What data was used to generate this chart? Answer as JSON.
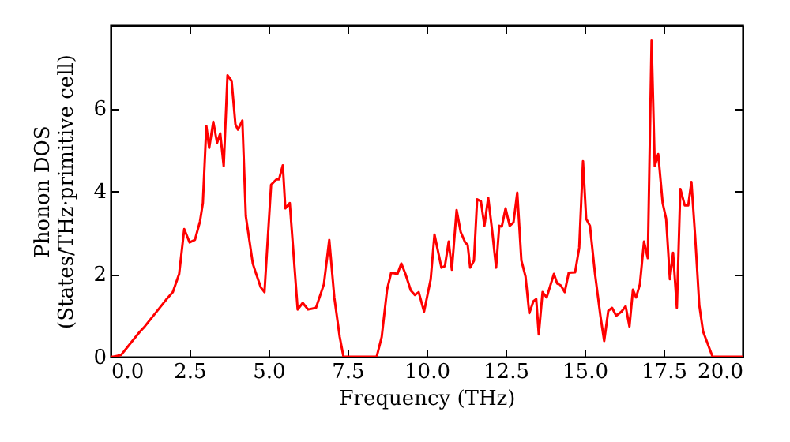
{
  "chart_data": {
    "type": "line",
    "xlabel": "Frequency (THz)",
    "ylabel": "Phonon DOS\n(States/THz·primitive cell)",
    "xlim": [
      0,
      20
    ],
    "ylim": [
      0,
      8
    ],
    "xticks": [
      {
        "value": 0,
        "label": "0.0"
      },
      {
        "value": 2.5,
        "label": "2.5"
      },
      {
        "value": 5,
        "label": "5.0"
      },
      {
        "value": 7.5,
        "label": "7.5"
      },
      {
        "value": 10,
        "label": "10.0"
      },
      {
        "value": 12.5,
        "label": "12.5"
      },
      {
        "value": 15,
        "label": "15.0"
      },
      {
        "value": 17.5,
        "label": "17.5"
      },
      {
        "value": 20,
        "label": "20.0"
      }
    ],
    "yticks": [
      0,
      2,
      4,
      6
    ],
    "grid": false,
    "marker": "none",
    "line_style": "solid",
    "x": [
      0,
      0.08,
      0.33,
      0.92,
      1.08,
      1.75,
      1.97,
      2.17,
      2.33,
      2.5,
      2.67,
      2.83,
      2.92,
      3.03,
      3.12,
      3.25,
      3.37,
      3.47,
      3.58,
      3.7,
      3.83,
      3.95,
      4.03,
      4.17,
      4.28,
      4.5,
      4.58,
      4.75,
      4.87,
      5.08,
      5.25,
      5.33,
      5.45,
      5.53,
      5.67,
      5.92,
      6.08,
      6.25,
      6.5,
      6.75,
      6.92,
      7.08,
      7.25,
      7.37,
      8.42,
      8.58,
      8.75,
      8.88,
      9.08,
      9.2,
      9.33,
      9.5,
      9.63,
      9.75,
      9.92,
      10.13,
      10.25,
      10.47,
      10.58,
      10.7,
      10.8,
      10.95,
      11.08,
      11.22,
      11.3,
      11.38,
      11.5,
      11.6,
      11.72,
      11.83,
      11.95,
      12.08,
      12.2,
      12.3,
      12.38,
      12.5,
      12.63,
      12.75,
      12.87,
      13,
      13.13,
      13.25,
      13.38,
      13.47,
      13.55,
      13.67,
      13.8,
      14.03,
      14.13,
      14.25,
      14.37,
      14.5,
      14.7,
      14.83,
      14.95,
      15.05,
      15.17,
      15.33,
      15.5,
      15.62,
      15.75,
      15.87,
      16,
      16.17,
      16.3,
      16.42,
      16.53,
      16.63,
      16.75,
      16.88,
      17,
      17.12,
      17.22,
      17.33,
      17.47,
      17.58,
      17.7,
      17.8,
      17.92,
      18.03,
      18.17,
      18.28,
      18.38,
      18.5,
      18.63,
      18.75,
      19.05,
      20
    ],
    "series": [
      {
        "color": "#ff0000",
        "values": [
          0,
          0,
          0.04,
          0.6,
          0.73,
          1.37,
          1.56,
          2.0,
          3.08,
          2.76,
          2.82,
          3.27,
          3.71,
          5.57,
          5.04,
          5.67,
          5.16,
          5.39,
          4.6,
          6.79,
          6.66,
          5.61,
          5.48,
          5.7,
          3.39,
          2.25,
          2.06,
          1.68,
          1.56,
          4.15,
          4.28,
          4.28,
          4.62,
          3.58,
          3.71,
          1.14,
          1.3,
          1.14,
          1.18,
          1.75,
          2.82,
          1.43,
          0.48,
          0,
          0,
          0.48,
          1.62,
          2.03,
          2.0,
          2.25,
          2.0,
          1.6,
          1.49,
          1.56,
          1.09,
          1.87,
          2.95,
          2.15,
          2.19,
          2.78,
          2.1,
          3.54,
          3.01,
          2.76,
          2.7,
          2.15,
          2.32,
          3.8,
          3.75,
          3.16,
          3.84,
          3.01,
          2.15,
          3.16,
          3.14,
          3.58,
          3.16,
          3.24,
          3.96,
          2.32,
          1.94,
          1.05,
          1.34,
          1.39,
          0.54,
          1.56,
          1.43,
          2.0,
          1.77,
          1.72,
          1.56,
          2.03,
          2.04,
          2.63,
          4.72,
          3.33,
          3.16,
          2.0,
          0.99,
          0.38,
          1.11,
          1.18,
          0.99,
          1.09,
          1.22,
          0.73,
          1.62,
          1.43,
          1.75,
          2.78,
          2.38,
          7.63,
          4.6,
          4.89,
          3.71,
          3.33,
          1.87,
          2.51,
          1.18,
          4.05,
          3.65,
          3.65,
          4.22,
          2.89,
          1.24,
          0.61,
          0,
          0
        ]
      }
    ]
  }
}
